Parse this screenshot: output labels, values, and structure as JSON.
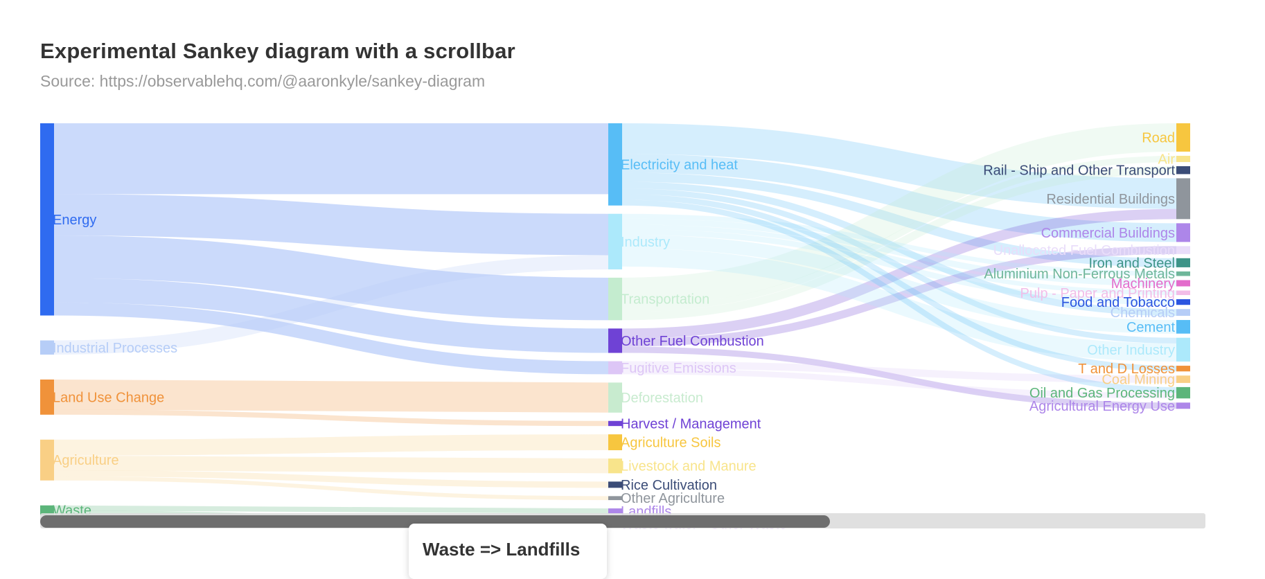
{
  "chart_data": {
    "type": "sankey",
    "title": "Experimental Sankey diagram with a scrollbar",
    "subtitle": "Source: https://observablehq.com/@aaronkyle/sankey-diagram",
    "nodes": [
      {
        "name": "Energy",
        "column": 0,
        "color": "#2f6bf0"
      },
      {
        "name": "Industrial Processes",
        "column": 0,
        "color": "#b6cdf7"
      },
      {
        "name": "Land Use Change",
        "column": 0,
        "color": "#f0923a"
      },
      {
        "name": "Agriculture",
        "column": 0,
        "color": "#f9cf85"
      },
      {
        "name": "Waste",
        "column": 0,
        "color": "#5cb57a"
      },
      {
        "name": "Electricity and heat",
        "column": 1,
        "color": "#57bdf6"
      },
      {
        "name": "Industry",
        "column": 1,
        "color": "#ace9fb"
      },
      {
        "name": "Transportation",
        "column": 1,
        "color": "#c4eccf"
      },
      {
        "name": "Other Fuel Combustion",
        "column": 1,
        "color": "#6f42d5"
      },
      {
        "name": "Fugitive Emissions",
        "column": 1,
        "color": "#ddc6f6"
      },
      {
        "name": "Deforestation",
        "column": 1,
        "color": "#c8ebcf"
      },
      {
        "name": "Harvest / Management",
        "column": 1,
        "color": "#6f42d5"
      },
      {
        "name": "Agriculture Soils",
        "column": 1,
        "color": "#f7c63f"
      },
      {
        "name": "Livestock and Manure",
        "column": 1,
        "color": "#f8e48b"
      },
      {
        "name": "Rice Cultivation",
        "column": 1,
        "color": "#3b4c77"
      },
      {
        "name": "Other Agriculture",
        "column": 1,
        "color": "#8f959c"
      },
      {
        "name": "Landfills",
        "column": 1,
        "color": "#ad86e9"
      },
      {
        "name": "Waste water - Other Waste",
        "column": 1,
        "color": "#ddc6f6"
      },
      {
        "name": "Road",
        "column": 2,
        "color": "#f7c63f"
      },
      {
        "name": "Air",
        "column": 2,
        "color": "#f8e48b"
      },
      {
        "name": "Rail - Ship and Other Transport",
        "column": 2,
        "color": "#3b4c77"
      },
      {
        "name": "Residential Buildings",
        "column": 2,
        "color": "#8f959c"
      },
      {
        "name": "Commercial Buildings",
        "column": 2,
        "color": "#ad86e9"
      },
      {
        "name": "Unallocated Fuel Combustion",
        "column": 2,
        "color": "#e9ddfa"
      },
      {
        "name": "Iron and Steel",
        "column": 2,
        "color": "#3e9488"
      },
      {
        "name": "Aluminium Non-Ferrous Metals",
        "column": 2,
        "color": "#6fb69a"
      },
      {
        "name": "Machinery",
        "column": 2,
        "color": "#e36ccb"
      },
      {
        "name": "Pulp - Paper and Printing",
        "column": 2,
        "color": "#f2bde8"
      },
      {
        "name": "Food and Tobacco",
        "column": 2,
        "color": "#2b55e0"
      },
      {
        "name": "Chemicals",
        "column": 2,
        "color": "#b6cdf7"
      },
      {
        "name": "Cement",
        "column": 2,
        "color": "#57bdf6"
      },
      {
        "name": "Other Industry",
        "column": 2,
        "color": "#ace9fb"
      },
      {
        "name": "T and D Losses",
        "column": 2,
        "color": "#f0923a"
      },
      {
        "name": "Coal Mining",
        "column": 2,
        "color": "#f9cf85"
      },
      {
        "name": "Oil and Gas Processing",
        "column": 2,
        "color": "#5cb57a"
      },
      {
        "name": "Agricultural Energy Use",
        "column": 2,
        "color": "#ad86e9"
      }
    ],
    "links": [
      {
        "source": "Energy",
        "target": "Electricity and heat",
        "value": 12.5
      },
      {
        "source": "Energy",
        "target": "Industry",
        "value": 7.3
      },
      {
        "source": "Energy",
        "target": "Transportation",
        "value": 7.5
      },
      {
        "source": "Energy",
        "target": "Other Fuel Combustion",
        "value": 4.3
      },
      {
        "source": "Energy",
        "target": "Fugitive Emissions",
        "value": 2.3
      },
      {
        "source": "Industrial Processes",
        "target": "Industry",
        "value": 2.5
      },
      {
        "source": "Land Use Change",
        "target": "Deforestation",
        "value": 5.3
      },
      {
        "source": "Land Use Change",
        "target": "Harvest / Management",
        "value": 0.9
      },
      {
        "source": "Agriculture",
        "target": "Agriculture Soils",
        "value": 2.8
      },
      {
        "source": "Agriculture",
        "target": "Livestock and Manure",
        "value": 2.6
      },
      {
        "source": "Agriculture",
        "target": "Rice Cultivation",
        "value": 1.1
      },
      {
        "source": "Agriculture",
        "target": "Other Agriculture",
        "value": 0.7
      },
      {
        "source": "Waste",
        "target": "Landfills",
        "value": 0.9
      },
      {
        "source": "Waste",
        "target": "Waste water - Other Waste",
        "value": 0.8
      },
      {
        "source": "Electricity and heat",
        "target": "Residential Buildings",
        "value": 5.4
      },
      {
        "source": "Electricity and heat",
        "target": "Commercial Buildings",
        "value": 3.3
      },
      {
        "source": "Electricity and heat",
        "target": "Iron and Steel",
        "value": 1.6
      },
      {
        "source": "Electricity and heat",
        "target": "Chemicals",
        "value": 1.2
      },
      {
        "source": "Electricity and heat",
        "target": "Other Industry",
        "value": 1.0
      },
      {
        "source": "Transportation",
        "target": "Road",
        "value": 5.0
      },
      {
        "source": "Transportation",
        "target": "Air",
        "value": 1.1
      },
      {
        "source": "Transportation",
        "target": "Rail - Ship and Other Transport",
        "value": 1.4
      },
      {
        "source": "Other Fuel Combustion",
        "target": "Residential Buildings",
        "value": 1.8
      },
      {
        "source": "Other Fuel Combustion",
        "target": "Unallocated Fuel Combustion",
        "value": 1.4
      },
      {
        "source": "Other Fuel Combustion",
        "target": "Agricultural Energy Use",
        "value": 1.1
      },
      {
        "source": "Industry",
        "target": "Cement",
        "value": 2.4
      },
      {
        "source": "Industry",
        "target": "Machinery",
        "value": 1.1
      },
      {
        "source": "Industry",
        "target": "Food and Tobacco",
        "value": 1.0
      },
      {
        "source": "Industry",
        "target": "Aluminium Non-Ferrous Metals",
        "value": 0.8
      },
      {
        "source": "Industry",
        "target": "Pulp - Paper and Printing",
        "value": 0.8
      },
      {
        "source": "Industry",
        "target": "Other Industry",
        "value": 3.2
      },
      {
        "source": "Fugitive Emissions",
        "target": "Coal Mining",
        "value": 1.3
      },
      {
        "source": "Fugitive Emissions",
        "target": "Oil and Gas Processing",
        "value": 1.0
      },
      {
        "source": "Electricity and heat",
        "target": "T and D Losses",
        "value": 1.0
      },
      {
        "source": "Electricity and heat",
        "target": "Oil and Gas Processing",
        "value": 1.0
      }
    ]
  },
  "scrollbar": {
    "position": 0.0,
    "visible_fraction": 0.68
  },
  "tooltip": {
    "text": "Waste => Landfills"
  }
}
